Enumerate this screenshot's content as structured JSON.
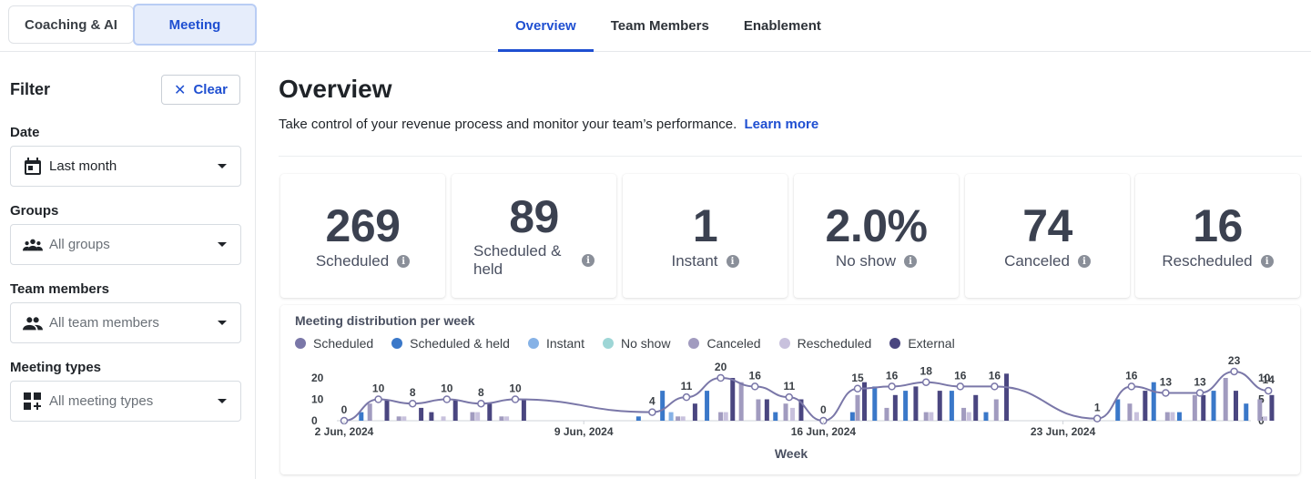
{
  "topbar": {
    "segments": [
      {
        "label": "Coaching & AI",
        "active": false
      },
      {
        "label": "Meeting",
        "active": true
      }
    ],
    "tabs": [
      {
        "label": "Overview",
        "active": true
      },
      {
        "label": "Team Members",
        "active": false
      },
      {
        "label": "Enablement",
        "active": false
      }
    ]
  },
  "filter": {
    "title": "Filter",
    "clear_label": "Clear",
    "date": {
      "label": "Date",
      "value": "Last month",
      "icon": "calendar-icon"
    },
    "groups": {
      "label": "Groups",
      "placeholder": "All groups",
      "icon": "groups-icon"
    },
    "team_members": {
      "label": "Team members",
      "placeholder": "All team members",
      "icon": "people-icon"
    },
    "meeting_types": {
      "label": "Meeting types",
      "placeholder": "All meeting types",
      "icon": "grid-add-icon"
    }
  },
  "overview": {
    "title": "Overview",
    "subtitle": "Take control of your revenue process and monitor your team’s performance.",
    "learn_more": "Learn more"
  },
  "stats": [
    {
      "value": "269",
      "label": "Scheduled"
    },
    {
      "value": "89",
      "label": "Scheduled & held"
    },
    {
      "value": "1",
      "label": "Instant"
    },
    {
      "value": "2.0%",
      "label": "No show"
    },
    {
      "value": "74",
      "label": "Canceled"
    },
    {
      "value": "16",
      "label": "Rescheduled"
    }
  ],
  "colors": {
    "scheduled": "#7a77a8",
    "scheduled_held": "#3a78c9",
    "instant": "#86b2e6",
    "no_show": "#9ed6d6",
    "canceled": "#a19bbf",
    "rescheduled": "#c8c1dd",
    "external": "#4a4680",
    "accent": "#1f4fd1"
  },
  "chart_data": {
    "type": "bar",
    "title": "Meeting distribution per week",
    "xlabel": "Week",
    "ylim_left": [
      0,
      20
    ],
    "ylim_right": [
      0,
      10
    ],
    "yticks_left": [
      "0",
      "10",
      "20"
    ],
    "yticks_right": [
      "0",
      "5",
      "10"
    ],
    "x_tick_labels": [
      {
        "label": "2 Jun, 2024",
        "day": 0
      },
      {
        "label": "9 Jun, 2024",
        "day": 7
      },
      {
        "label": "16 Jun, 2024",
        "day": 14
      },
      {
        "label": "23 Jun, 2024",
        "day": 21
      }
    ],
    "legend": [
      "Scheduled",
      "Scheduled & held",
      "Instant",
      "No show",
      "Canceled",
      "Rescheduled",
      "External"
    ],
    "scheduled_line": [
      0,
      10,
      8,
      10,
      8,
      10,
      null,
      null,
      null,
      4,
      11,
      20,
      16,
      11,
      0,
      15,
      16,
      18,
      16,
      16,
      null,
      null,
      1,
      16,
      13,
      13,
      23,
      14
    ],
    "scheduled_line_days": [
      0,
      1,
      2,
      3,
      4,
      5,
      null,
      null,
      null,
      9,
      10,
      11,
      12,
      13,
      14,
      15,
      16,
      17,
      18,
      19,
      null,
      null,
      22,
      23,
      24,
      25,
      26,
      27
    ],
    "scheduled_labels": [
      {
        "day": 0,
        "value": "0"
      },
      {
        "day": 1,
        "value": "10"
      },
      {
        "day": 2,
        "value": "8"
      },
      {
        "day": 3,
        "value": "10"
      },
      {
        "day": 4,
        "value": "8"
      },
      {
        "day": 5,
        "value": "10"
      },
      {
        "day": 9,
        "value": "4"
      },
      {
        "day": 10,
        "value": "11"
      },
      {
        "day": 11,
        "value": "20"
      },
      {
        "day": 12,
        "value": "16"
      },
      {
        "day": 13,
        "value": "11"
      },
      {
        "day": 14,
        "value": "0"
      },
      {
        "day": 15,
        "value": "15"
      },
      {
        "day": 16,
        "value": "16"
      },
      {
        "day": 17,
        "value": "18"
      },
      {
        "day": 18,
        "value": "16"
      },
      {
        "day": 19,
        "value": "16"
      },
      {
        "day": 22,
        "value": "1"
      },
      {
        "day": 23,
        "value": "16"
      },
      {
        "day": 24,
        "value": "13"
      },
      {
        "day": 25,
        "value": "13"
      },
      {
        "day": 26,
        "value": "23"
      },
      {
        "day": 27,
        "value": "14"
      }
    ],
    "bars": [
      {
        "day": 0.5,
        "series": "Scheduled & held",
        "value": 2
      },
      {
        "day": 0.75,
        "series": "Canceled",
        "value": 4
      },
      {
        "day": 1.25,
        "series": "External",
        "value": 5
      },
      {
        "day": 1.6,
        "series": "Canceled",
        "value": 1
      },
      {
        "day": 1.75,
        "series": "Rescheduled",
        "value": 1
      },
      {
        "day": 2.25,
        "series": "External",
        "value": 3
      },
      {
        "day": 2.55,
        "series": "External",
        "value": 2
      },
      {
        "day": 2.9,
        "series": "Rescheduled",
        "value": 1
      },
      {
        "day": 3.25,
        "series": "External",
        "value": 5
      },
      {
        "day": 3.75,
        "series": "Canceled",
        "value": 2
      },
      {
        "day": 3.9,
        "series": "Rescheduled",
        "value": 2
      },
      {
        "day": 4.25,
        "series": "External",
        "value": 4
      },
      {
        "day": 4.6,
        "series": "Canceled",
        "value": 1
      },
      {
        "day": 4.75,
        "series": "Rescheduled",
        "value": 1
      },
      {
        "day": 5.25,
        "series": "External",
        "value": 5
      },
      {
        "day": 8.6,
        "series": "Scheduled & held",
        "value": 1
      },
      {
        "day": 9.3,
        "series": "Scheduled & held",
        "value": 7
      },
      {
        "day": 9.55,
        "series": "Instant",
        "value": 2
      },
      {
        "day": 9.75,
        "series": "Canceled",
        "value": 1
      },
      {
        "day": 9.9,
        "series": "Rescheduled",
        "value": 1
      },
      {
        "day": 10.25,
        "series": "External",
        "value": 4
      },
      {
        "day": 10.6,
        "series": "Scheduled & held",
        "value": 7
      },
      {
        "day": 11.0,
        "series": "Canceled",
        "value": 2
      },
      {
        "day": 11.15,
        "series": "Rescheduled",
        "value": 2
      },
      {
        "day": 11.35,
        "series": "External",
        "value": 10
      },
      {
        "day": 11.6,
        "series": "Canceled",
        "value": 9
      },
      {
        "day": 12.1,
        "series": "Canceled",
        "value": 5
      },
      {
        "day": 12.35,
        "series": "External",
        "value": 5
      },
      {
        "day": 12.6,
        "series": "Scheduled & held",
        "value": 2
      },
      {
        "day": 12.9,
        "series": "Canceled",
        "value": 4
      },
      {
        "day": 13.1,
        "series": "Rescheduled",
        "value": 3
      },
      {
        "day": 13.35,
        "series": "External",
        "value": 5
      },
      {
        "day": 14.85,
        "series": "Scheduled & held",
        "value": 2
      },
      {
        "day": 15.0,
        "series": "Canceled",
        "value": 6
      },
      {
        "day": 15.2,
        "series": "External",
        "value": 9
      },
      {
        "day": 15.5,
        "series": "Scheduled & held",
        "value": 8
      },
      {
        "day": 15.85,
        "series": "Canceled",
        "value": 3
      },
      {
        "day": 16.1,
        "series": "External",
        "value": 6
      },
      {
        "day": 16.4,
        "series": "Scheduled & held",
        "value": 7
      },
      {
        "day": 16.7,
        "series": "External",
        "value": 8
      },
      {
        "day": 17.0,
        "series": "Canceled",
        "value": 2
      },
      {
        "day": 17.15,
        "series": "Rescheduled",
        "value": 2
      },
      {
        "day": 17.4,
        "series": "External",
        "value": 7
      },
      {
        "day": 17.75,
        "series": "Scheduled & held",
        "value": 7
      },
      {
        "day": 18.1,
        "series": "Canceled",
        "value": 3
      },
      {
        "day": 18.25,
        "series": "Rescheduled",
        "value": 2
      },
      {
        "day": 18.45,
        "series": "External",
        "value": 6
      },
      {
        "day": 18.75,
        "series": "Scheduled & held",
        "value": 2
      },
      {
        "day": 19.05,
        "series": "Canceled",
        "value": 5
      },
      {
        "day": 19.35,
        "series": "External",
        "value": 11
      },
      {
        "day": 22.6,
        "series": "Scheduled & held",
        "value": 5
      },
      {
        "day": 22.95,
        "series": "Canceled",
        "value": 4
      },
      {
        "day": 23.15,
        "series": "Rescheduled",
        "value": 2
      },
      {
        "day": 23.4,
        "series": "External",
        "value": 7
      },
      {
        "day": 23.65,
        "series": "Scheduled & held",
        "value": 9
      },
      {
        "day": 24.05,
        "series": "Canceled",
        "value": 2
      },
      {
        "day": 24.2,
        "series": "Rescheduled",
        "value": 2
      },
      {
        "day": 24.4,
        "series": "Scheduled & held",
        "value": 2
      },
      {
        "day": 24.85,
        "series": "Canceled",
        "value": 6
      },
      {
        "day": 25.1,
        "series": "External",
        "value": 6
      },
      {
        "day": 25.4,
        "series": "Scheduled & held",
        "value": 7
      },
      {
        "day": 25.75,
        "series": "Canceled",
        "value": 10
      },
      {
        "day": 26.05,
        "series": "External",
        "value": 7
      },
      {
        "day": 26.35,
        "series": "Scheduled & held",
        "value": 4
      },
      {
        "day": 26.75,
        "series": "Canceled",
        "value": 5
      },
      {
        "day": 26.9,
        "series": "Rescheduled",
        "value": 1
      },
      {
        "day": 27.1,
        "series": "External",
        "value": 6
      }
    ]
  }
}
